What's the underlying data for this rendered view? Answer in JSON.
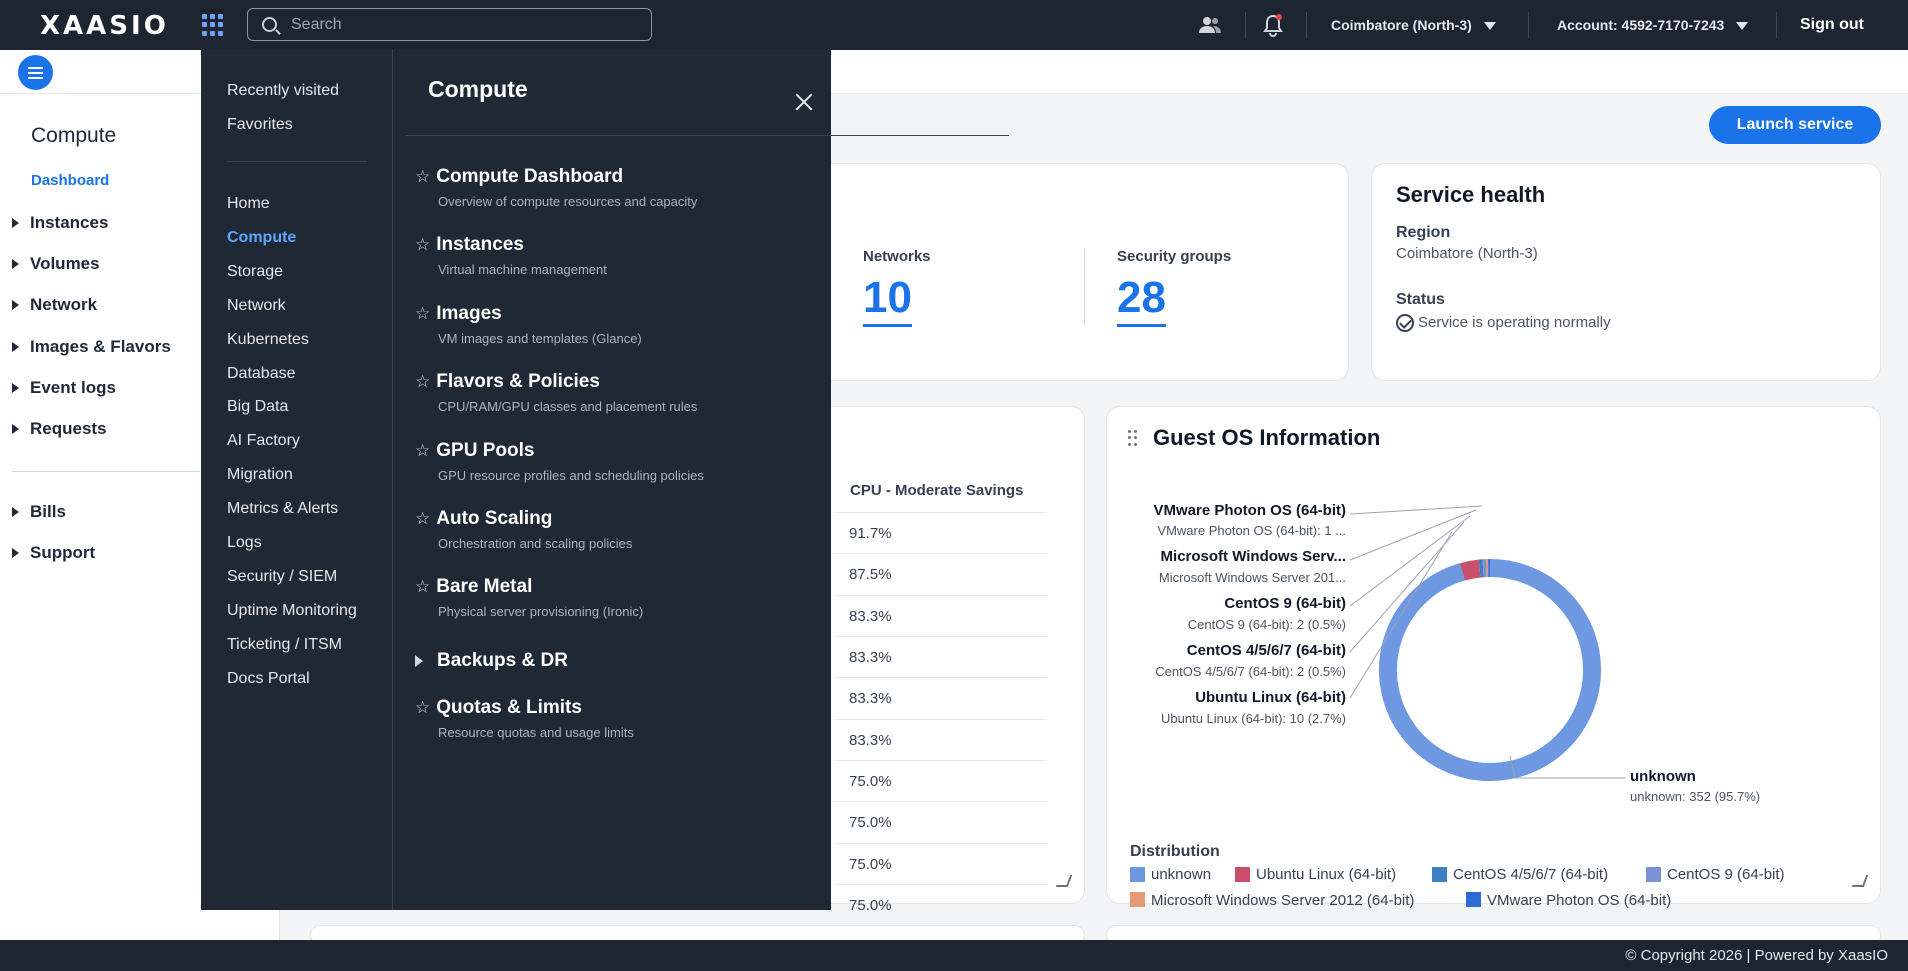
{
  "topbar": {
    "logo": "XAASIO",
    "search_placeholder": "Search",
    "region": "Coimbatore (North-3)",
    "account": "Account: 4592-7170-7243",
    "sign_out": "Sign out"
  },
  "sidebar": {
    "title": "Compute",
    "active": "Dashboard",
    "items": [
      "Instances",
      "Volumes",
      "Network",
      "Images & Flavors",
      "Event logs",
      "Requests"
    ],
    "items2": [
      "Bills",
      "Support"
    ]
  },
  "main": {
    "launch_label": "Launch service",
    "stats": [
      {
        "label": "Networks",
        "value": "10"
      },
      {
        "label": "Security groups",
        "value": "28"
      }
    ],
    "service_health": {
      "title": "Service health",
      "region_label": "Region",
      "region_value": "Coimbatore (North-3)",
      "status_label": "Status",
      "status_value": "Service is operating normally"
    },
    "cpu_table": {
      "header": "CPU - Moderate Savings",
      "rows": [
        "91.7%",
        "87.5%",
        "83.3%",
        "83.3%",
        "83.3%",
        "83.3%",
        "75.0%",
        "75.0%",
        "75.0%",
        "75.0%"
      ]
    }
  },
  "chart_data": {
    "type": "pie",
    "title": "Guest OS Information",
    "legend_title": "Distribution",
    "slices": [
      {
        "name": "unknown",
        "value": 352,
        "percent": 95.7,
        "color": "#6f98e3"
      },
      {
        "name": "Ubuntu Linux (64-bit)",
        "value": 10,
        "percent": 2.7,
        "color": "#c94f6d"
      },
      {
        "name": "CentOS 4/5/6/7 (64-bit)",
        "value": 2,
        "percent": 0.5,
        "color": "#3d7fc1"
      },
      {
        "name": "CentOS 9 (64-bit)",
        "value": 2,
        "percent": 0.5,
        "color": "#7a93d6"
      },
      {
        "name": "Microsoft Windows Server 2012 (64-bit)",
        "value": 1,
        "percent": 0.3,
        "color": "#e59a76"
      },
      {
        "name": "VMware Photon OS (64-bit)",
        "value": 1,
        "percent": 0.3,
        "color": "#2e6bd6"
      }
    ],
    "callouts": [
      {
        "label": "VMware Photon OS (64-bit)",
        "sub": "VMware Photon OS (64-bit): 1 ..."
      },
      {
        "label": "Microsoft Windows Serv...",
        "sub": "Microsoft Windows Server 201..."
      },
      {
        "label": "CentOS 9 (64-bit)",
        "sub": "CentOS 9 (64-bit): 2 (0.5%)"
      },
      {
        "label": "CentOS 4/5/6/7 (64-bit)",
        "sub": "CentOS 4/5/6/7 (64-bit): 2 (0.5%)"
      },
      {
        "label": "Ubuntu Linux (64-bit)",
        "sub": "Ubuntu Linux (64-bit): 10 (2.7%)"
      },
      {
        "label": "unknown",
        "sub": "unknown: 352 (95.7%)"
      }
    ]
  },
  "mega_menu": {
    "left_top": [
      "Recently visited",
      "Favorites"
    ],
    "left_items": [
      "Home",
      "Compute",
      "Storage",
      "Network",
      "Kubernetes",
      "Database",
      "Big Data",
      "AI Factory",
      "Migration",
      "Metrics & Alerts",
      "Logs",
      "Security / SIEM",
      "Uptime Monitoring",
      "Ticketing / ITSM",
      "Docs Portal"
    ],
    "active": "Compute",
    "title": "Compute",
    "services": [
      {
        "name": "Compute Dashboard",
        "desc": "Overview of compute resources and capacity"
      },
      {
        "name": "Instances",
        "desc": "Virtual machine management"
      },
      {
        "name": "Images",
        "desc": "VM images and templates (Glance)"
      },
      {
        "name": "Flavors & Policies",
        "desc": "CPU/RAM/GPU classes and placement rules"
      },
      {
        "name": "GPU Pools",
        "desc": "GPU resource profiles and scheduling policies"
      },
      {
        "name": "Auto Scaling",
        "desc": "Orchestration and scaling policies"
      },
      {
        "name": "Bare Metal",
        "desc": "Physical server provisioning (Ironic)"
      }
    ],
    "group": "Backups & DR",
    "last_service": {
      "name": "Quotas & Limits",
      "desc": "Resource quotas and usage limits"
    }
  },
  "footer": {
    "text": "© Copyright 2026 | Powered by XaasIO"
  }
}
